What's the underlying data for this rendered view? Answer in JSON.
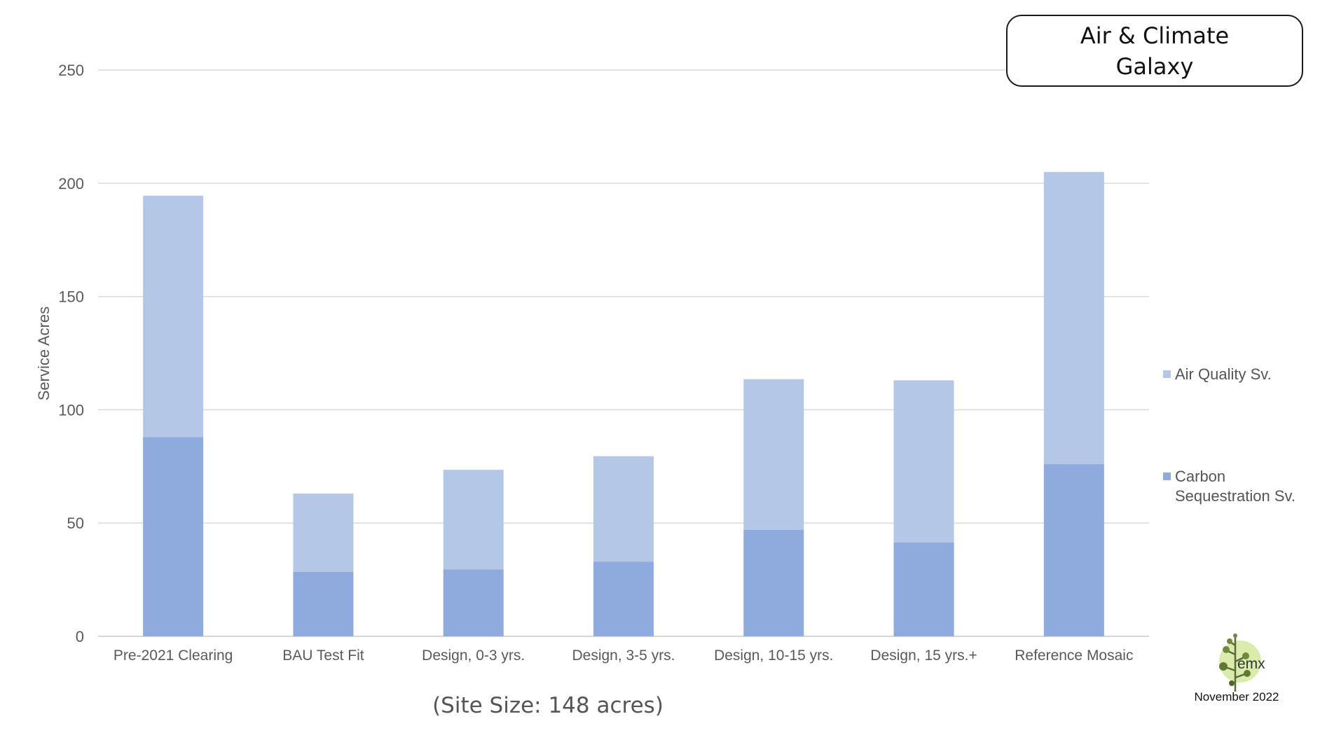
{
  "header": {
    "title_line1": "Air & Climate",
    "title_line2": "Galaxy"
  },
  "footer": {
    "site_size": "(Site Size: 148 acres)",
    "date": "November 2022",
    "logo_text": "emx",
    "logo_icon": "tree-icon"
  },
  "colors": {
    "air_quality": "#b4c7e7",
    "carbon": "#8faadc",
    "grid": "#d9d9d9",
    "axis_text": "#595959"
  },
  "chart_data": {
    "type": "bar",
    "stacked": true,
    "ylabel": "Service Acres",
    "xlabel": "",
    "ylim": [
      0,
      250
    ],
    "yticks": [
      0,
      50,
      100,
      150,
      200,
      250
    ],
    "grid": true,
    "legend_position": "right",
    "categories": [
      "Pre-2021 Clearing",
      "BAU Test Fit",
      "Design, 0-3 yrs.",
      "Design, 3-5 yrs.",
      "Design, 10-15 yrs.",
      "Design, 15 yrs.+",
      "Reference Mosaic"
    ],
    "series": [
      {
        "name": "Carbon Sequestration Sv.",
        "legend_lines": [
          "Carbon",
          "Sequestration Sv."
        ],
        "color": "#8faadc",
        "values": [
          88,
          28.5,
          29.5,
          33,
          47,
          41.5,
          76
        ]
      },
      {
        "name": "Air Quality Sv.",
        "legend_lines": [
          "Air Quality Sv."
        ],
        "color": "#b4c7e7",
        "values": [
          106.5,
          34.5,
          44,
          46.5,
          66.5,
          71.5,
          129
        ]
      }
    ]
  }
}
